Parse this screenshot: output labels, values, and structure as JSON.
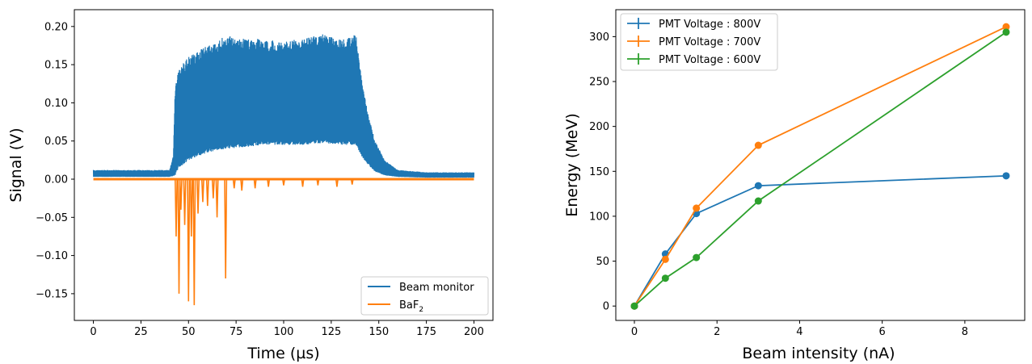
{
  "chart_data": [
    {
      "type": "line",
      "title": "",
      "xlabel": "Time (µs)",
      "ylabel": "Signal (V)",
      "xlim": [
        -10,
        210
      ],
      "ylim": [
        -0.185,
        0.222
      ],
      "xticks": [
        0,
        25,
        50,
        75,
        100,
        125,
        150,
        175,
        200
      ],
      "xtick_labels": [
        "0",
        "25",
        "50",
        "75",
        "100",
        "125",
        "150",
        "175",
        "200"
      ],
      "yticks": [
        -0.15,
        -0.1,
        -0.05,
        0.0,
        0.05,
        0.1,
        0.15,
        0.2
      ],
      "ytick_labels": [
        "−0.15",
        "−0.10",
        "−0.05",
        "0.00",
        "0.05",
        "0.10",
        "0.15",
        "0.20"
      ],
      "legend_position": "lower-right",
      "grid": false,
      "series": [
        {
          "name": "Beam monitor",
          "color": "#1f77b4",
          "kind": "oscillating-envelope",
          "upper_envelope": {
            "x": [
              0,
              40,
              42,
              43,
              45,
              50,
              55,
              60,
              65,
              70,
              75,
              80,
              90,
              100,
              110,
              120,
              130,
              138,
              141,
              144,
              148,
              153,
              160,
              175,
              200
            ],
            "y": [
              0.012,
              0.012,
              0.03,
              0.12,
              0.145,
              0.16,
              0.168,
              0.175,
              0.18,
              0.19,
              0.182,
              0.185,
              0.183,
              0.18,
              0.185,
              0.19,
              0.183,
              0.19,
              0.13,
              0.09,
              0.05,
              0.025,
              0.012,
              0.009,
              0.009
            ]
          },
          "lower_envelope": {
            "x": [
              0,
              40,
              42,
              43,
              45,
              50,
              55,
              60,
              70,
              80,
              90,
              100,
              110,
              120,
              130,
              138,
              141,
              144,
              148,
              153,
              160,
              175,
              200
            ],
            "y": [
              0.003,
              0.003,
              0.004,
              0.005,
              0.015,
              0.025,
              0.03,
              0.035,
              0.04,
              0.042,
              0.045,
              0.045,
              0.045,
              0.047,
              0.045,
              0.045,
              0.03,
              0.02,
              0.01,
              0.005,
              0.003,
              0.002,
              0.002
            ]
          }
        },
        {
          "name": "BaF₂",
          "name_base": "BaF",
          "name_subscript": "2",
          "color": "#ff7f0e",
          "kind": "baseline-with-spikes",
          "baseline": 0.0,
          "dips": [
            {
              "x": 43.5,
              "y": -0.075
            },
            {
              "x": 45.0,
              "y": -0.15
            },
            {
              "x": 46.0,
              "y": -0.04
            },
            {
              "x": 48.0,
              "y": -0.06
            },
            {
              "x": 50.0,
              "y": -0.16
            },
            {
              "x": 51.5,
              "y": -0.075
            },
            {
              "x": 53.0,
              "y": -0.165
            },
            {
              "x": 55.0,
              "y": -0.045
            },
            {
              "x": 57.5,
              "y": -0.03
            },
            {
              "x": 60.0,
              "y": -0.035
            },
            {
              "x": 63.0,
              "y": -0.025
            },
            {
              "x": 65.0,
              "y": -0.05
            },
            {
              "x": 69.5,
              "y": -0.13
            },
            {
              "x": 74.0,
              "y": -0.012
            },
            {
              "x": 78.0,
              "y": -0.015
            },
            {
              "x": 85.0,
              "y": -0.012
            },
            {
              "x": 92.0,
              "y": -0.01
            },
            {
              "x": 100.0,
              "y": -0.008
            },
            {
              "x": 110.0,
              "y": -0.01
            },
            {
              "x": 118.0,
              "y": -0.008
            },
            {
              "x": 128.0,
              "y": -0.01
            },
            {
              "x": 136.0,
              "y": -0.007
            }
          ]
        }
      ]
    },
    {
      "type": "line",
      "title": "",
      "xlabel": "Beam intensity (nA)",
      "ylabel": "Energy (MeV)",
      "xlim": [
        -0.45,
        9.45
      ],
      "ylim": [
        -16,
        330
      ],
      "xticks": [
        0,
        2,
        4,
        6,
        8
      ],
      "xtick_labels": [
        "0",
        "2",
        "4",
        "6",
        "8"
      ],
      "yticks": [
        0,
        50,
        100,
        150,
        200,
        250,
        300
      ],
      "ytick_labels": [
        "0",
        "50",
        "100",
        "150",
        "200",
        "250",
        "300"
      ],
      "legend_position": "upper-left",
      "grid": false,
      "series": [
        {
          "name": "PMT Voltage : 800V",
          "color": "#1f77b4",
          "x": [
            0,
            0.75,
            1.5,
            3,
            9
          ],
          "y": [
            0,
            58,
            103,
            134,
            145
          ]
        },
        {
          "name": "PMT Voltage : 700V",
          "color": "#ff7f0e",
          "x": [
            0,
            0.75,
            1.5,
            3,
            9
          ],
          "y": [
            0,
            52,
            109,
            179,
            311
          ]
        },
        {
          "name": "PMT Voltage : 600V",
          "color": "#2ca02c",
          "x": [
            0,
            0.75,
            1.5,
            3,
            9
          ],
          "y": [
            0,
            31,
            54,
            117,
            305
          ]
        }
      ]
    }
  ]
}
